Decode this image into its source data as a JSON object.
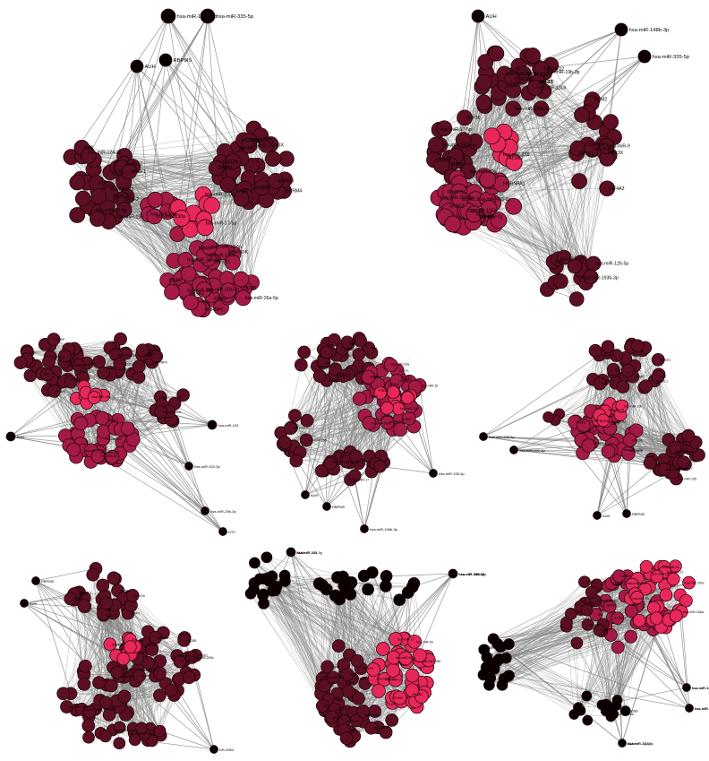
{
  "colors": {
    "edge": "#808080",
    "node_hub": "#e8285a",
    "node_mid": "#a41a45",
    "node_dark": "#5c0f22",
    "node_black": "#0a0000",
    "node_stroke": "#1a0006"
  },
  "panels": [
    {
      "id": "p1",
      "outer_labels": [
        "hsa-miR-335-5p",
        "hsa-miR-148b-3p",
        "AUH",
        "RBPMS"
      ],
      "labels": [
        "SUB1",
        "SRSF2",
        "RBFOX2",
        "FUS",
        "PRC",
        "SRRM4",
        "EIF4A3",
        "DDX24",
        "HNRNPD",
        "SRRM3",
        "PTBP1",
        "CNBP",
        "RBM47",
        "HNRNPC",
        "NOVA1",
        "hsa-miR-19b",
        "hsa-miR-106a",
        "hsa-miR-20a-5p",
        "hsa-miR-130a",
        "hsa-miR-17-5p",
        "hsa-miR-93-5p",
        "hsa-miR-155",
        "hsa-miR-124-3p",
        "hsa-miR-21",
        "ELAVL1",
        "SRSF1",
        "KHSRP",
        "QKI",
        "CELF1",
        "DDX3X",
        "CDC40",
        "PUM1",
        "SRSF3",
        "HNRNPK",
        "LIN28B",
        "hsa-miR-26a-5p",
        "hsa-miR-34a-5p",
        "hsa-miR-16-5p",
        "hsa-miR-29a",
        "hsa-miR-200c"
      ]
    },
    {
      "id": "p2",
      "outer_labels": [
        "AUH",
        "hsa-miR-148b-3p",
        "hsa-miR-335-5p"
      ],
      "labels": [
        "SRSF7",
        "FASTKD2",
        "TAF15",
        "U2AF2",
        "YTHDF3",
        "LARP4",
        "RBM4",
        "ZFP36",
        "PABPC1",
        "SRSF3",
        "NOVA1",
        "CELF1",
        "MOV10",
        "PUM2",
        "GRSF1",
        "hsa-miR-1",
        "hsa-miR-9",
        "hsa-miR-193b-3p",
        "hsa-miR-126-5p",
        "ATXN2",
        "hsa-miR-19b-3p",
        "hsa-miR-130b-3p",
        "hsa-miR-19b",
        "hsa-miR-130a",
        "hsa-miR-145a",
        "hsa-miR-192-5p",
        "hsa-miR-17-5p",
        "hsa-miR-20a",
        "hsa-miR-23a-3p",
        "hsa-miR-455-3p",
        "hsa-miR-106a",
        "hsa-miR-7g",
        "HNRNPA1",
        "ELAVL1",
        "IGF2BP1",
        "DDX3X",
        "EIF4A3",
        "FUS",
        "hsa-miR-21",
        "hsa-miR-155"
      ]
    },
    {
      "id": "p3",
      "outer_labels": [
        "AUH",
        "hsa-miR-103",
        "hsa-miR-320-3p",
        "hsa-miR-25b-3p",
        "DTC"
      ],
      "labels": [
        "SRSF1",
        "ELAVL1",
        "FUS",
        "QKI",
        "PTBP1",
        "HNRNPK",
        "CELF1",
        "PUM2",
        "LIN28B",
        "RBM47",
        "hsa-miR-21",
        "hsa-miR-155",
        "hsa-miR-17",
        "hsa-miR-93",
        "hsa-miR-106a",
        "hsa-miR-20a",
        "hsa-miR-19b",
        "SRSF3",
        "TIA1",
        "KHSRP",
        "U2AF2",
        "CNBP",
        "DDX3X",
        "EIF4A3",
        "hsa-miR-16",
        "hsa-miR-29a"
      ]
    },
    {
      "id": "p4",
      "outer_labels": [
        "AUH",
        "RBPMS",
        "hsa-miR-148b-3p",
        "hsa-miR-335-5p"
      ],
      "labels": [
        "SRSF1",
        "ELAVL1",
        "FUS",
        "TAF15",
        "QKI",
        "PTBP1",
        "HNRNPK",
        "CELF1",
        "PUM2",
        "LIN28B",
        "RBM47",
        "hsa-miR-21",
        "hsa-miR-155",
        "hsa-miR-17",
        "hsa-miR-93",
        "hsa-miR-106a",
        "hsa-miR-20a",
        "hsa-miR-19b",
        "SRSF3",
        "TIA1",
        "KHSRP",
        "U2AF2",
        "CNBP",
        "DDX3X",
        "EIF4A3",
        "hsa-miR-16",
        "hsa-miR-29a",
        "hsa-miR-200c"
      ]
    },
    {
      "id": "p5",
      "outer_labels": [
        "hsa-miR-335-5p",
        "hsa-miR-320-3p",
        "AUH",
        "RBPMS"
      ],
      "labels": [
        "SRSF1",
        "ELAVL1",
        "FUS",
        "QKI",
        "PTBP1",
        "HNRNPK",
        "CELF1",
        "PUM2",
        "LIN28B",
        "hsa-miR-21",
        "hsa-miR-155",
        "hsa-miR-17",
        "hsa-miR-93",
        "hsa-miR-106a",
        "hsa-miR-20a",
        "hsa-miR-19b",
        "SRSF3",
        "TIA1",
        "KHSRP",
        "U2AF2",
        "CNBP",
        "DDX3X",
        "hsa-miR-16",
        "hsa-miR-29a"
      ]
    },
    {
      "id": "p6",
      "outer_labels": [
        "RBPMS",
        "AUH",
        "DR-0083"
      ],
      "labels": [
        "SRSF1",
        "ELAVL1",
        "FUS",
        "QKI",
        "PTBP1",
        "HNRNPK",
        "CELF1",
        "PUM2",
        "LIN28B",
        "MOV10",
        "hsa-miR-21",
        "hsa-miR-155",
        "hsa-miR-17",
        "hsa-miR-93",
        "hsa-miR-106a",
        "hsa-miR-20a",
        "hsa-miR-19b",
        "SRSF3",
        "TIA1",
        "KHSRP",
        "U2AF2",
        "CNBP",
        "DDX3X",
        "hsa-miR-16",
        "hsa-miR-29a",
        "hsa-miR-200c"
      ]
    },
    {
      "id": "p7",
      "outer_labels": [
        "AUH",
        "hsa-miR-148b-3p",
        "hsa-miR-335-5p",
        "hsa-miR-320-3p",
        "hsa-miR-103",
        "hsa-miR-25b-3p"
      ],
      "labels": [
        "YTHDF1",
        "SRSF1",
        "ELAVL1",
        "FUS",
        "QKI",
        "PTBP1",
        "HNRNPK",
        "CELF1",
        "PUM2",
        "LIN28B",
        "hsa-miR-21",
        "hsa-miR-155",
        "hsa-miR-17",
        "hsa-miR-93",
        "hsa-miR-106a",
        "hsa-miR-20a",
        "SRSF3",
        "TIA1",
        "KHSRP",
        "U2AF2",
        "CNBP",
        "DDX3X",
        "hsa-miR-16",
        "hsa-miR-29a"
      ]
    },
    {
      "id": "p8",
      "outer_labels": [
        "AUH",
        "hsa-miR-148b-3p",
        "hsa-miR-335-5p",
        "hsa-miR-320-3p",
        "hsa-miR-103",
        "hsa-miR-25b-3p",
        "hsa-miR-7g-5p"
      ],
      "labels": [
        "SRSF1",
        "ELAVL1",
        "FUS",
        "QKI",
        "PTBP1",
        "HNRNPK",
        "CELF1",
        "PUM2",
        "LIN28B",
        "hsa-miR-21",
        "hsa-miR-155",
        "hsa-miR-17",
        "hsa-miR-93",
        "hsa-miR-106a",
        "hsa-miR-20a",
        "SRSF3",
        "TIA1",
        "KHSRP",
        "U2AF2",
        "CNBP",
        "DDX3X",
        "hsa-miR-16",
        "hsa-miR-29a",
        "hsa-miR-200c"
      ]
    }
  ]
}
